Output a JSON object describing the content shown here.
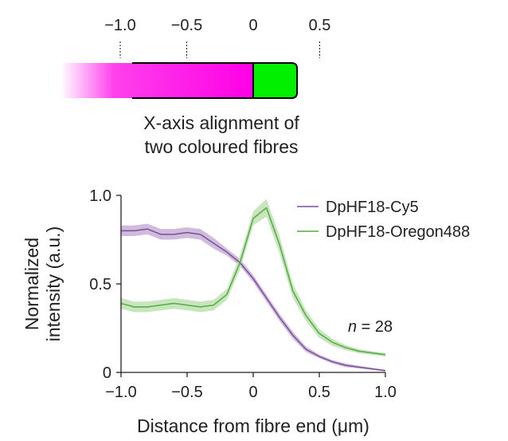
{
  "top_panel": {
    "scale_ticks": [
      {
        "value": -1.0,
        "label": "−1.0"
      },
      {
        "value": -0.5,
        "label": "−0.5"
      },
      {
        "value": 0,
        "label": "0"
      },
      {
        "value": 0.5,
        "label": "0.5"
      }
    ],
    "bar_range": [
      -1.45,
      0.33
    ],
    "magenta_color": "#ff00e6",
    "green_color": "#00f000",
    "caption_line1": "X-axis alignment of",
    "caption_line2": "two coloured fibres"
  },
  "chart_data": {
    "type": "line",
    "xlabel": "Distance from fibre end (μm)",
    "ylabel_line1": "Normalized",
    "ylabel_line2": "intensity (a.u.)",
    "xlim": [
      -1.0,
      1.0
    ],
    "ylim": [
      0,
      1.0
    ],
    "x_ticks": [
      {
        "value": -1.0,
        "label": "−1.0"
      },
      {
        "value": -0.5,
        "label": "−0.5"
      },
      {
        "value": 0,
        "label": "0"
      },
      {
        "value": 0.5,
        "label": "0.5"
      },
      {
        "value": 1.0,
        "label": "1.0"
      }
    ],
    "y_ticks": [
      {
        "value": 0,
        "label": "0"
      },
      {
        "value": 0.5,
        "label": "0.5"
      },
      {
        "value": 1.0,
        "label": "1.0"
      }
    ],
    "annotation_prefix": "n",
    "annotation_value": " = 28",
    "legend_position": "top-right",
    "series": [
      {
        "name": "DpHF18-Cy5",
        "color": "#7b4f9a",
        "band_color": "#c7afd6",
        "x": [
          -1.0,
          -0.9,
          -0.8,
          -0.7,
          -0.6,
          -0.5,
          -0.4,
          -0.3,
          -0.2,
          -0.1,
          0.0,
          0.1,
          0.2,
          0.3,
          0.4,
          0.5,
          0.6,
          0.7,
          0.8,
          0.9,
          1.0
        ],
        "y": [
          0.8,
          0.8,
          0.81,
          0.78,
          0.78,
          0.79,
          0.78,
          0.73,
          0.68,
          0.62,
          0.53,
          0.42,
          0.31,
          0.21,
          0.13,
          0.09,
          0.06,
          0.04,
          0.03,
          0.02,
          0.01
        ],
        "err": [
          0.03,
          0.03,
          0.03,
          0.03,
          0.03,
          0.03,
          0.03,
          0.03,
          0.02,
          0.02,
          0.02,
          0.02,
          0.02,
          0.02,
          0.015,
          0.01,
          0.01,
          0.01,
          0.008,
          0.006,
          0.005
        ]
      },
      {
        "name": "DpHF18-Oregon488",
        "color": "#4fae3e",
        "band_color": "#bfe0b3",
        "x": [
          -1.0,
          -0.9,
          -0.8,
          -0.7,
          -0.6,
          -0.5,
          -0.4,
          -0.3,
          -0.2,
          -0.1,
          0.0,
          0.1,
          0.2,
          0.3,
          0.4,
          0.5,
          0.6,
          0.7,
          0.8,
          0.9,
          1.0
        ],
        "y": [
          0.39,
          0.37,
          0.37,
          0.38,
          0.39,
          0.38,
          0.37,
          0.38,
          0.44,
          0.62,
          0.87,
          0.93,
          0.72,
          0.46,
          0.32,
          0.22,
          0.17,
          0.14,
          0.12,
          0.11,
          0.1
        ],
        "err": [
          0.03,
          0.03,
          0.03,
          0.03,
          0.03,
          0.03,
          0.03,
          0.03,
          0.03,
          0.04,
          0.04,
          0.05,
          0.05,
          0.04,
          0.03,
          0.025,
          0.02,
          0.015,
          0.012,
          0.01,
          0.01
        ]
      }
    ]
  }
}
